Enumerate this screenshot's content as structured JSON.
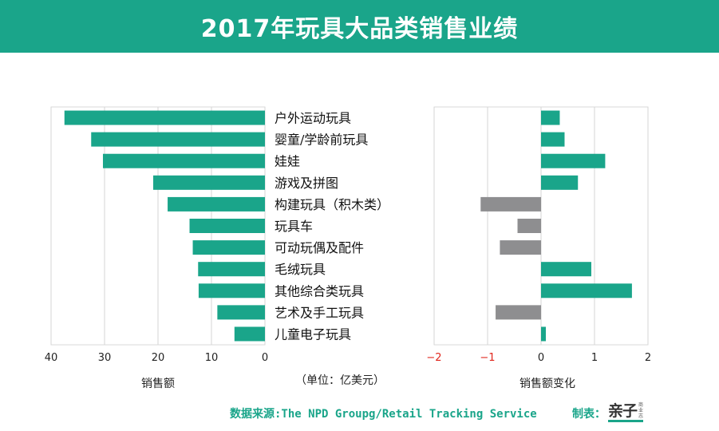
{
  "header": {
    "title": "2017年玩具大品类销售业绩"
  },
  "categories": [
    "户外运动玩具",
    "婴童/学龄前玩具",
    "娃娃",
    "游戏及拼图",
    "构建玩具（积木类）",
    "玩具车",
    "可动玩偶及配件",
    "毛绒玩具",
    "其他综合类玩具",
    "艺术及手工玩具",
    "儿童电子玩具"
  ],
  "unit_label": "（单位：亿美元）",
  "source": "数据来源:The NPD Groupg/Retail Tracking Service",
  "maker_label": "制表：",
  "logo": {
    "main": "亲子",
    "side": "商业志"
  },
  "colors": {
    "teal": "#1aa58a",
    "gray": "#8e8e90",
    "header": "#1aa58a"
  },
  "chart_data": [
    {
      "type": "bar",
      "orientation": "horizontal",
      "direction": "reversed",
      "xlabel": "销售额",
      "xlim": [
        40,
        0
      ],
      "xticks": [
        40,
        30,
        20,
        10,
        0
      ],
      "grid": true,
      "categories": [
        "户外运动玩具",
        "婴童/学龄前玩具",
        "娃娃",
        "游戏及拼图",
        "构建玩具（积木类）",
        "玩具车",
        "可动玩偶及配件",
        "毛绒玩具",
        "其他综合类玩具",
        "艺术及手工玩具",
        "儿童电子玩具"
      ],
      "values": [
        37.5,
        32.5,
        30.3,
        20.9,
        18.2,
        14.1,
        13.5,
        12.5,
        12.4,
        8.9,
        5.7
      ]
    },
    {
      "type": "bar",
      "orientation": "horizontal",
      "xlabel": "销售额变化",
      "xlim": [
        -2,
        2
      ],
      "xticks": [
        -2,
        -1,
        0,
        1,
        2
      ],
      "grid": true,
      "categories": [
        "户外运动玩具",
        "婴童/学龄前玩具",
        "娃娃",
        "游戏及拼图",
        "构建玩具（积木类）",
        "玩具车",
        "可动玩偶及配件",
        "毛绒玩具",
        "其他综合类玩具",
        "艺术及手工玩具",
        "儿童电子玩具"
      ],
      "values": [
        0.35,
        0.44,
        1.2,
        0.69,
        -1.13,
        -0.44,
        -0.77,
        0.94,
        1.7,
        -0.85,
        0.09
      ]
    }
  ]
}
